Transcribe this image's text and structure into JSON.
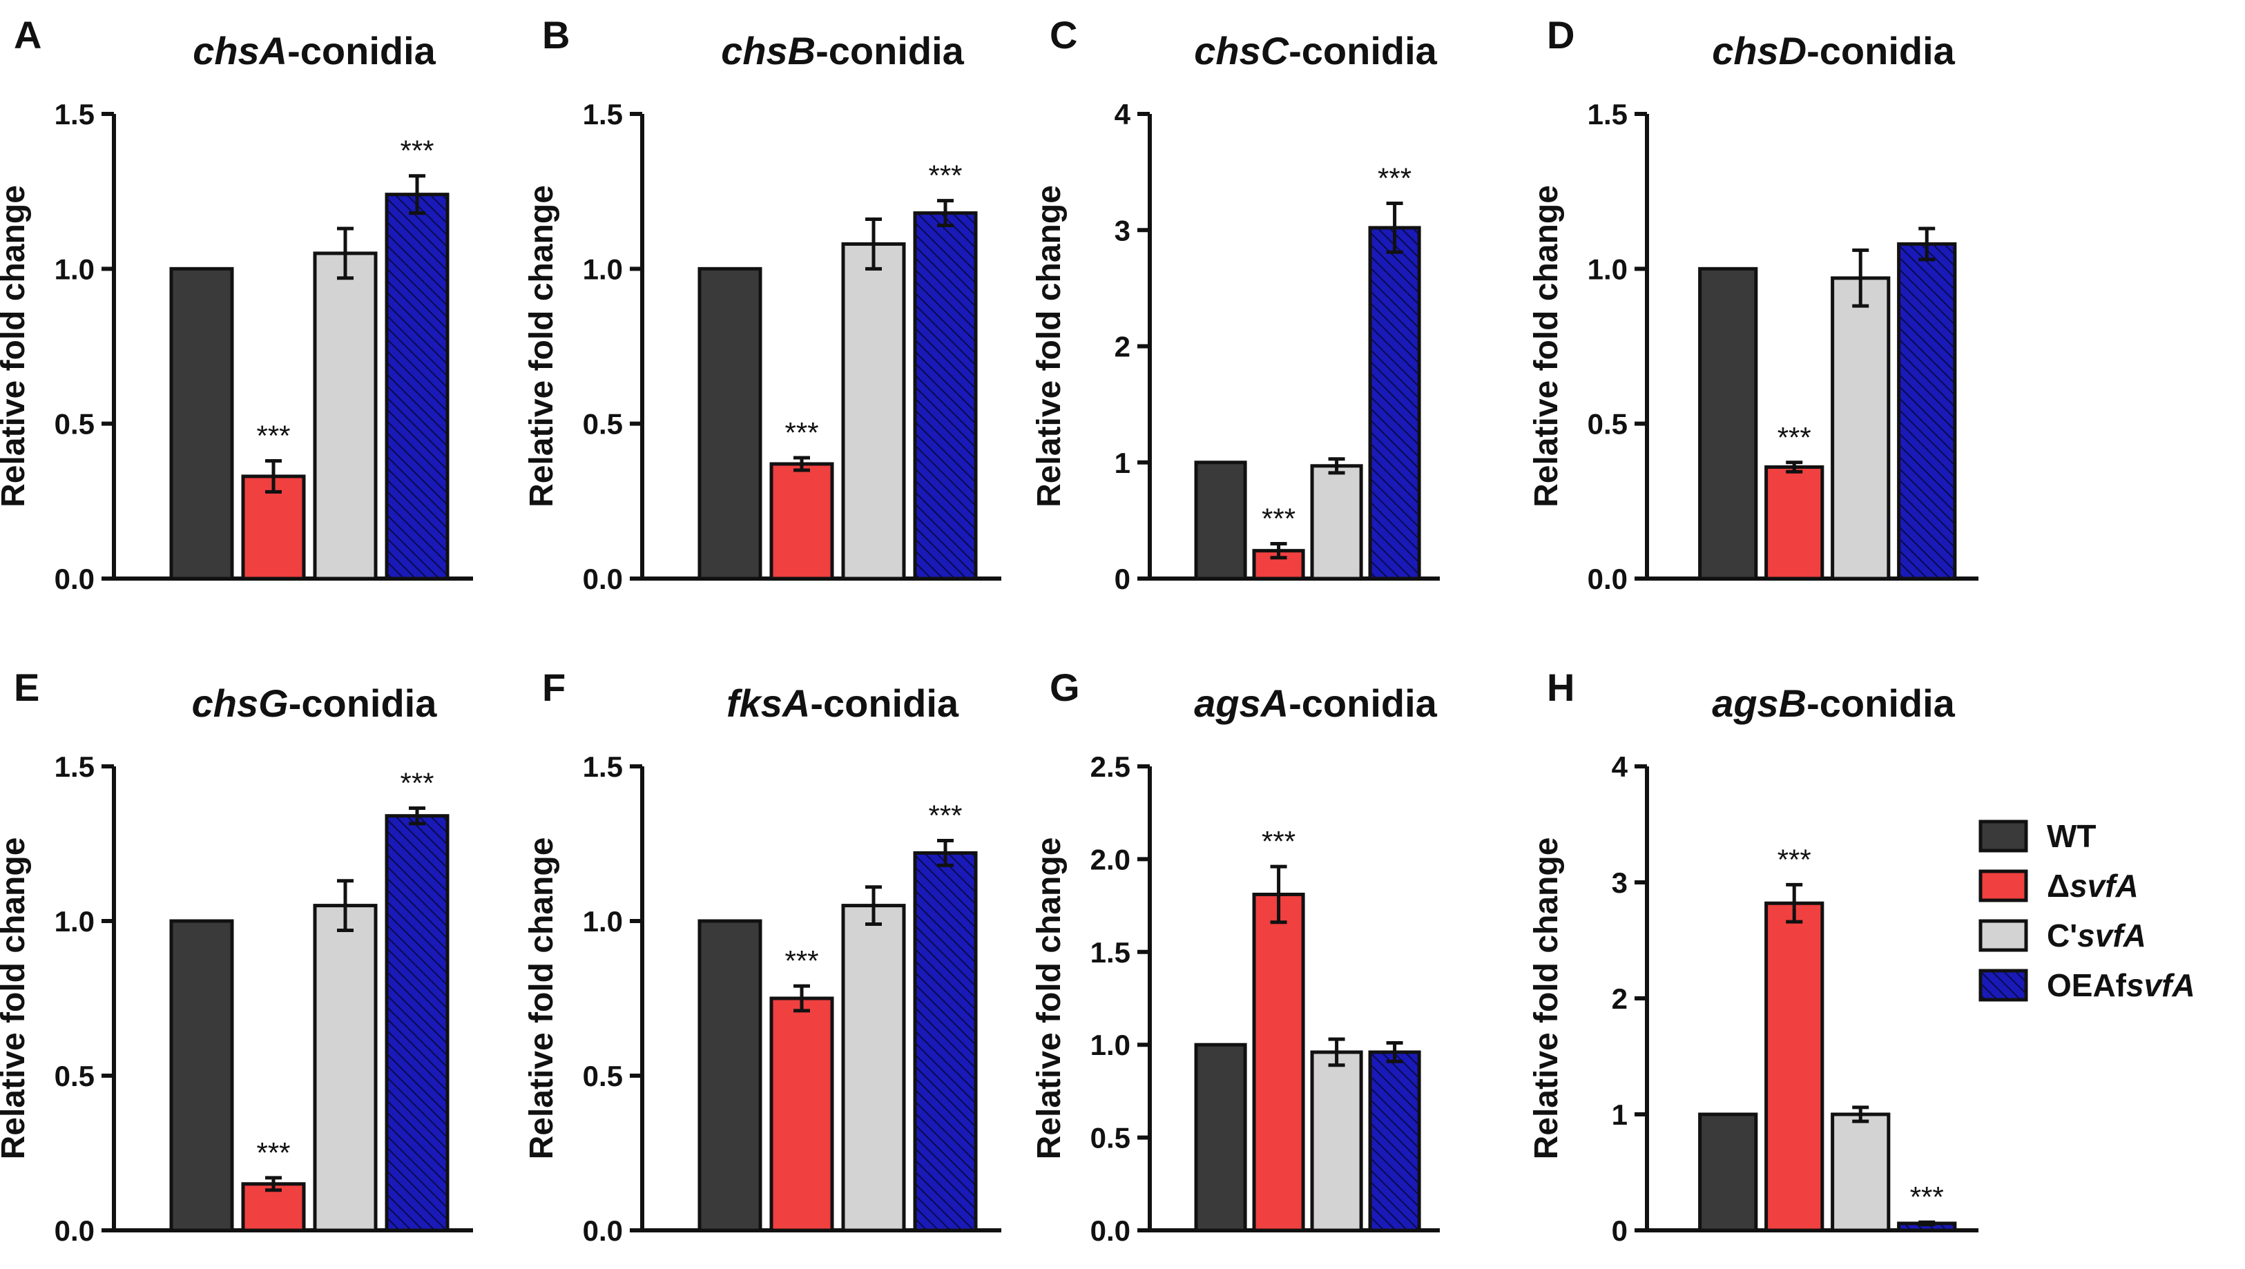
{
  "figure": {
    "ylabel": "Relative fold change",
    "title_suffix": "-conidia",
    "significance_mark": "***"
  },
  "legend": {
    "position": "right",
    "entries": [
      {
        "key": "wt",
        "pre": "WT",
        "ital": "",
        "color": "#3a3a3a",
        "pattern": "solid"
      },
      {
        "key": "dsvfa",
        "pre": "Δ",
        "ital": "svfA",
        "color": "#f04040",
        "pattern": "solid"
      },
      {
        "key": "csvfa",
        "pre": "C'",
        "ital": "svfA",
        "color": "#d3d3d3",
        "pattern": "solid"
      },
      {
        "key": "oeafsvfa",
        "pre": "OEAf",
        "ital": "svfA",
        "color": "#1a1ab8",
        "pattern": "hatched"
      }
    ]
  },
  "chart_data": [
    {
      "letter": "A",
      "gene": "chsA",
      "type": "bar",
      "ylim": [
        0,
        1.5
      ],
      "ticks": [
        "0.0",
        "0.5",
        "1.0",
        "1.5"
      ],
      "categories": [
        "WT",
        "ΔsvfA",
        "C'svfA",
        "OEAfsvfA"
      ],
      "values": [
        1.0,
        0.33,
        1.05,
        1.24
      ],
      "errors": [
        0.0,
        0.05,
        0.08,
        0.06
      ],
      "significant": [
        false,
        true,
        false,
        true
      ]
    },
    {
      "letter": "B",
      "gene": "chsB",
      "type": "bar",
      "ylim": [
        0,
        1.5
      ],
      "ticks": [
        "0.0",
        "0.5",
        "1.0",
        "1.5"
      ],
      "categories": [
        "WT",
        "ΔsvfA",
        "C'svfA",
        "OEAfsvfA"
      ],
      "values": [
        1.0,
        0.37,
        1.08,
        1.18
      ],
      "errors": [
        0.0,
        0.02,
        0.08,
        0.04
      ],
      "significant": [
        false,
        true,
        false,
        true
      ]
    },
    {
      "letter": "C",
      "gene": "chsC",
      "type": "bar",
      "ylim": [
        0,
        4
      ],
      "ticks": [
        "0",
        "1",
        "2",
        "3",
        "4"
      ],
      "categories": [
        "WT",
        "ΔsvfA",
        "C'svfA",
        "OEAfsvfA"
      ],
      "values": [
        1.0,
        0.24,
        0.97,
        3.02
      ],
      "errors": [
        0.0,
        0.06,
        0.06,
        0.21
      ],
      "significant": [
        false,
        true,
        false,
        true
      ]
    },
    {
      "letter": "D",
      "gene": "chsD",
      "type": "bar",
      "ylim": [
        0,
        1.5
      ],
      "ticks": [
        "0.0",
        "0.5",
        "1.0",
        "1.5"
      ],
      "categories": [
        "WT",
        "ΔsvfA",
        "C'svfA",
        "OEAfsvfA"
      ],
      "values": [
        1.0,
        0.36,
        0.97,
        1.08
      ],
      "errors": [
        0.0,
        0.015,
        0.09,
        0.05
      ],
      "significant": [
        false,
        true,
        false,
        false
      ]
    },
    {
      "letter": "E",
      "gene": "chsG",
      "type": "bar",
      "ylim": [
        0,
        1.5
      ],
      "ticks": [
        "0.0",
        "0.5",
        "1.0",
        "1.5"
      ],
      "categories": [
        "WT",
        "ΔsvfA",
        "C'svfA",
        "OEAfsvfA"
      ],
      "values": [
        1.0,
        0.15,
        1.05,
        1.34
      ],
      "errors": [
        0.0,
        0.02,
        0.08,
        0.025
      ],
      "significant": [
        false,
        true,
        false,
        true
      ]
    },
    {
      "letter": "F",
      "gene": "fksA",
      "type": "bar",
      "ylim": [
        0,
        1.5
      ],
      "ticks": [
        "0.0",
        "0.5",
        "1.0",
        "1.5"
      ],
      "categories": [
        "WT",
        "ΔsvfA",
        "C'svfA",
        "OEAfsvfA"
      ],
      "values": [
        1.0,
        0.75,
        1.05,
        1.22
      ],
      "errors": [
        0.0,
        0.04,
        0.06,
        0.04
      ],
      "significant": [
        false,
        true,
        false,
        true
      ]
    },
    {
      "letter": "G",
      "gene": "agsA",
      "type": "bar",
      "ylim": [
        0,
        2.5
      ],
      "ticks": [
        "0.0",
        "0.5",
        "1.0",
        "1.5",
        "2.0",
        "2.5"
      ],
      "categories": [
        "WT",
        "ΔsvfA",
        "C'svfA",
        "OEAfsvfA"
      ],
      "values": [
        1.0,
        1.81,
        0.96,
        0.96
      ],
      "errors": [
        0.0,
        0.15,
        0.07,
        0.05
      ],
      "significant": [
        false,
        true,
        false,
        false
      ]
    },
    {
      "letter": "H",
      "gene": "agsB",
      "type": "bar",
      "ylim": [
        0,
        4
      ],
      "ticks": [
        "0",
        "1",
        "2",
        "3",
        "4"
      ],
      "categories": [
        "WT",
        "ΔsvfA",
        "C'svfA",
        "OEAfsvfA"
      ],
      "values": [
        1.0,
        2.82,
        1.0,
        0.06
      ],
      "errors": [
        0.0,
        0.16,
        0.06,
        0.01
      ],
      "significant": [
        false,
        true,
        false,
        true
      ]
    }
  ]
}
